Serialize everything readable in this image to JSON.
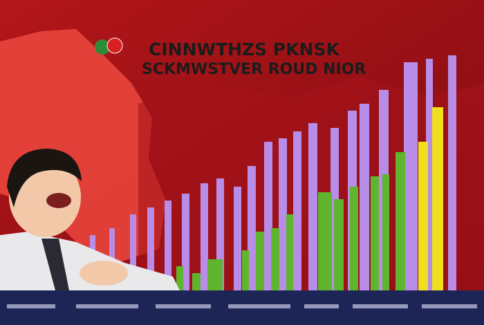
{
  "header": {
    "title": "CINNWTHZS PKNSK",
    "subtitle": "SCKMWSTVER ROUD NIOR"
  }
}
